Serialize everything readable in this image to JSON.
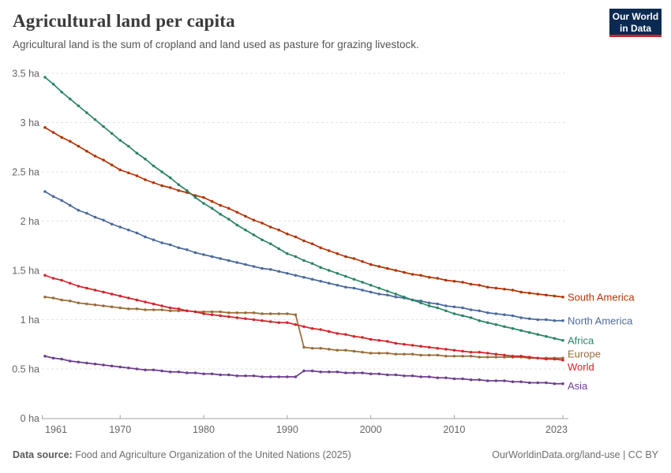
{
  "header": {
    "title": "Agricultural land per capita",
    "subtitle": "Agricultural land is the sum of cropland and land used as pasture for grazing livestock.",
    "logo": {
      "line1": "Our World",
      "line2": "in Data",
      "bg_color": "#0a2a52",
      "accent_color": "#d1202c"
    }
  },
  "chart_data": {
    "type": "line",
    "title": "Agricultural land per capita",
    "unit": "ha",
    "xlabel": "",
    "ylabel": "",
    "grid": true,
    "legend_position": "right-end-labels",
    "ylim": [
      0,
      3.5
    ],
    "yticks": [
      0,
      0.5,
      1,
      1.5,
      2,
      2.5,
      3,
      3.5
    ],
    "ytick_labels": [
      "0 ha",
      "0.5 ha",
      "1 ha",
      "1.5 ha",
      "2 ha",
      "2.5 ha",
      "3 ha",
      "3.5 ha"
    ],
    "xticks": [
      1961,
      1970,
      1980,
      1990,
      2000,
      2010,
      2023
    ],
    "years": [
      1961,
      1962,
      1963,
      1964,
      1965,
      1966,
      1967,
      1968,
      1969,
      1970,
      1971,
      1972,
      1973,
      1974,
      1975,
      1976,
      1977,
      1978,
      1979,
      1980,
      1981,
      1982,
      1983,
      1984,
      1985,
      1986,
      1987,
      1988,
      1989,
      1990,
      1991,
      1992,
      1993,
      1994,
      1995,
      1996,
      1997,
      1998,
      1999,
      2000,
      2001,
      2002,
      2003,
      2004,
      2005,
      2006,
      2007,
      2008,
      2009,
      2010,
      2011,
      2012,
      2013,
      2014,
      2015,
      2016,
      2017,
      2018,
      2019,
      2020,
      2021,
      2022,
      2023
    ],
    "series": [
      {
        "name": "South America",
        "color": "#b13507",
        "values": [
          2.95,
          2.9,
          2.85,
          2.81,
          2.76,
          2.71,
          2.66,
          2.62,
          2.57,
          2.52,
          2.49,
          2.46,
          2.42,
          2.39,
          2.36,
          2.34,
          2.31,
          2.29,
          2.26,
          2.24,
          2.2,
          2.16,
          2.13,
          2.09,
          2.05,
          2.01,
          1.98,
          1.94,
          1.91,
          1.87,
          1.84,
          1.8,
          1.77,
          1.73,
          1.7,
          1.67,
          1.64,
          1.62,
          1.59,
          1.56,
          1.54,
          1.52,
          1.5,
          1.48,
          1.46,
          1.45,
          1.43,
          1.42,
          1.4,
          1.39,
          1.38,
          1.36,
          1.35,
          1.33,
          1.32,
          1.31,
          1.3,
          1.28,
          1.27,
          1.26,
          1.25,
          1.24,
          1.23
        ]
      },
      {
        "name": "North America",
        "color": "#4c6a9c",
        "values": [
          2.3,
          2.25,
          2.21,
          2.16,
          2.11,
          2.08,
          2.04,
          2.01,
          1.97,
          1.94,
          1.91,
          1.88,
          1.84,
          1.81,
          1.78,
          1.76,
          1.73,
          1.71,
          1.68,
          1.66,
          1.64,
          1.62,
          1.6,
          1.58,
          1.56,
          1.54,
          1.52,
          1.51,
          1.49,
          1.47,
          1.45,
          1.43,
          1.41,
          1.39,
          1.37,
          1.35,
          1.33,
          1.32,
          1.3,
          1.28,
          1.26,
          1.25,
          1.23,
          1.22,
          1.2,
          1.19,
          1.17,
          1.16,
          1.14,
          1.13,
          1.12,
          1.1,
          1.09,
          1.07,
          1.06,
          1.05,
          1.04,
          1.02,
          1.01,
          1.0,
          1.0,
          0.99,
          0.99
        ]
      },
      {
        "name": "Africa",
        "color": "#2c8465",
        "values": [
          3.46,
          3.39,
          3.31,
          3.24,
          3.17,
          3.1,
          3.03,
          2.96,
          2.89,
          2.82,
          2.76,
          2.69,
          2.63,
          2.56,
          2.5,
          2.44,
          2.37,
          2.31,
          2.24,
          2.18,
          2.13,
          2.07,
          2.02,
          1.96,
          1.91,
          1.86,
          1.81,
          1.77,
          1.72,
          1.67,
          1.64,
          1.6,
          1.57,
          1.53,
          1.5,
          1.47,
          1.44,
          1.41,
          1.38,
          1.35,
          1.32,
          1.29,
          1.26,
          1.23,
          1.2,
          1.17,
          1.14,
          1.12,
          1.09,
          1.06,
          1.04,
          1.02,
          0.99,
          0.97,
          0.95,
          0.93,
          0.91,
          0.89,
          0.87,
          0.85,
          0.83,
          0.81,
          0.79
        ]
      },
      {
        "name": "Europe",
        "color": "#996d39",
        "values": [
          1.23,
          1.22,
          1.2,
          1.19,
          1.17,
          1.16,
          1.15,
          1.14,
          1.13,
          1.12,
          1.11,
          1.11,
          1.1,
          1.1,
          1.1,
          1.09,
          1.09,
          1.09,
          1.08,
          1.08,
          1.08,
          1.08,
          1.07,
          1.07,
          1.07,
          1.07,
          1.06,
          1.06,
          1.06,
          1.06,
          1.05,
          0.72,
          0.71,
          0.71,
          0.7,
          0.69,
          0.69,
          0.68,
          0.67,
          0.66,
          0.66,
          0.66,
          0.65,
          0.65,
          0.65,
          0.64,
          0.64,
          0.64,
          0.63,
          0.63,
          0.63,
          0.63,
          0.62,
          0.62,
          0.62,
          0.62,
          0.62,
          0.62,
          0.61,
          0.61,
          0.61,
          0.61,
          0.61
        ]
      },
      {
        "name": "World",
        "color": "#d2262c",
        "values": [
          1.45,
          1.42,
          1.4,
          1.37,
          1.34,
          1.32,
          1.3,
          1.28,
          1.26,
          1.24,
          1.22,
          1.2,
          1.18,
          1.16,
          1.14,
          1.12,
          1.11,
          1.09,
          1.08,
          1.06,
          1.05,
          1.04,
          1.03,
          1.02,
          1.01,
          1.0,
          0.99,
          0.98,
          0.97,
          0.97,
          0.95,
          0.93,
          0.91,
          0.9,
          0.88,
          0.86,
          0.85,
          0.83,
          0.82,
          0.8,
          0.79,
          0.78,
          0.76,
          0.75,
          0.74,
          0.73,
          0.72,
          0.71,
          0.7,
          0.69,
          0.68,
          0.67,
          0.67,
          0.66,
          0.65,
          0.64,
          0.63,
          0.63,
          0.62,
          0.61,
          0.6,
          0.6,
          0.59
        ]
      },
      {
        "name": "Asia",
        "color": "#6d3e91",
        "values": [
          0.63,
          0.61,
          0.6,
          0.58,
          0.57,
          0.56,
          0.55,
          0.54,
          0.53,
          0.52,
          0.51,
          0.5,
          0.49,
          0.49,
          0.48,
          0.47,
          0.47,
          0.46,
          0.46,
          0.45,
          0.45,
          0.44,
          0.44,
          0.43,
          0.43,
          0.43,
          0.42,
          0.42,
          0.42,
          0.42,
          0.42,
          0.48,
          0.48,
          0.47,
          0.47,
          0.47,
          0.46,
          0.46,
          0.46,
          0.45,
          0.45,
          0.44,
          0.44,
          0.43,
          0.43,
          0.42,
          0.42,
          0.41,
          0.41,
          0.4,
          0.4,
          0.39,
          0.39,
          0.38,
          0.38,
          0.38,
          0.37,
          0.37,
          0.36,
          0.36,
          0.36,
          0.35,
          0.35
        ]
      }
    ]
  },
  "footer": {
    "source_label": "Data source:",
    "source_value": "Food and Agriculture Organization of the United Nations (2025)",
    "credit": "OurWorldinData.org/land-use | CC BY"
  }
}
